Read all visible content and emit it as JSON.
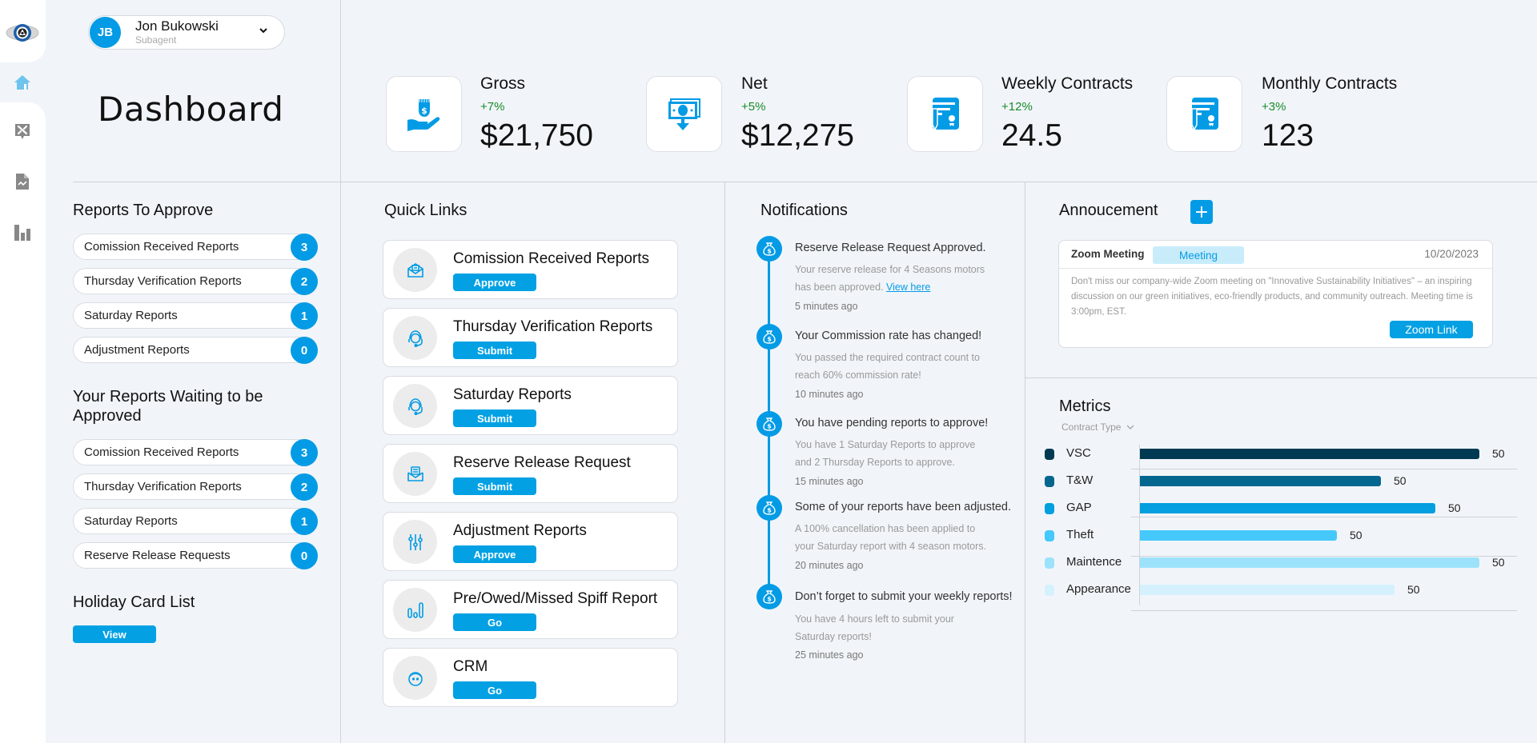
{
  "user": {
    "initials": "JB",
    "name": "Jon Bukowski",
    "role": "Subagent"
  },
  "page_title": "Dashboard",
  "sidebar": {
    "items": [
      {
        "name": "home",
        "icon": "home-icon",
        "active": true
      },
      {
        "name": "tools",
        "icon": "tools-icon",
        "active": false
      },
      {
        "name": "reports",
        "icon": "file-chart-icon",
        "active": false
      },
      {
        "name": "analytics",
        "icon": "bar-chart-icon",
        "active": false
      }
    ]
  },
  "kpis": [
    {
      "label": "Gross",
      "delta": "+7%",
      "value": "$21,750",
      "icon": "hand-money-icon"
    },
    {
      "label": "Net",
      "delta": "+5%",
      "value": "$12,275",
      "icon": "cash-down-icon"
    },
    {
      "label": "Weekly Contracts",
      "delta": "+12%",
      "value": "24.5",
      "icon": "contract-icon"
    },
    {
      "label": "Monthly Contracts",
      "delta": "+3%",
      "value": "123",
      "icon": "contract-icon"
    }
  ],
  "reports_to_approve": {
    "title": "Reports To Approve",
    "items": [
      {
        "label": "Comission Received Reports",
        "count": "3"
      },
      {
        "label": "Thursday Verification Reports",
        "count": "2"
      },
      {
        "label": "Saturday Reports",
        "count": "1"
      },
      {
        "label": "Adjustment Reports",
        "count": "0"
      }
    ]
  },
  "reports_waiting": {
    "title_line1": "Your Reports Waiting to be",
    "title_line2": "Approved",
    "items": [
      {
        "label": "Comission Received Reports",
        "count": "3"
      },
      {
        "label": "Thursday Verification Reports",
        "count": "2"
      },
      {
        "label": "Saturday Reports",
        "count": "1"
      },
      {
        "label": "Reserve Release Requests",
        "count": "0"
      }
    ]
  },
  "holiday": {
    "title": "Holiday Card List",
    "button": "View"
  },
  "quick_links": {
    "title": "Quick Links",
    "items": [
      {
        "title": "Comission Received Reports",
        "button": "Approve",
        "icon": "envelope-open-icon"
      },
      {
        "title": "Thursday Verification Reports",
        "button": "Submit",
        "icon": "headset-agent-icon"
      },
      {
        "title": "Saturday Reports",
        "button": "Submit",
        "icon": "headset-agent-icon"
      },
      {
        "title": "Reserve Release Request",
        "button": "Submit",
        "icon": "mail-document-icon"
      },
      {
        "title": "Adjustment Reports",
        "button": "Approve",
        "icon": "sliders-icon"
      },
      {
        "title": "Pre/Owed/Missed Spiff Report",
        "button": "Go",
        "icon": "bar-chart-icon"
      },
      {
        "title": "CRM",
        "button": "Go",
        "icon": "user-face-icon"
      }
    ]
  },
  "notifications": {
    "title": "Notifications",
    "items": [
      {
        "title": "Reserve Release Request Approved.",
        "body_line1": "Your reserve release for 4 Seasons motors",
        "body_line2": "has been approved.",
        "link": "View here",
        "time": "5 minutes ago"
      },
      {
        "title": "Your Commission rate has changed!",
        "body_line1": "You passed the required contract count to",
        "body_line2": "reach 60% commission rate!",
        "time": "10 minutes ago"
      },
      {
        "title": "You have pending reports to approve!",
        "body_line1": "You have 1 Saturday Reports to approve",
        "body_line2": "and 2 Thursday Reports to approve.",
        "time": "15 minutes ago"
      },
      {
        "title": "Some of your reports have been adjusted.",
        "body_line1": "A 100% cancellation has been applied to",
        "body_line2": "your Saturday report with 4 season motors.",
        "time": "20 minutes ago"
      },
      {
        "title": "Don’t forget to submit your weekly reports!",
        "body_line1": "You have 4 hours left to submit your",
        "body_line2": "Saturday reports!",
        "time": "25 minutes ago"
      }
    ]
  },
  "announcement": {
    "title": "Annoucement",
    "add_label": "+",
    "card": {
      "title": "Zoom Meeting",
      "tag": "Meeting",
      "date": "10/20/2023",
      "body": "Don't miss our company-wide Zoom meeting on \"Innovative Sustainability Initiatives\" – an inspiring discussion on our green initiatives, eco-friendly products, and community outreach. Meeting time is 3:00pm, EST.",
      "button": "Zoom Link"
    }
  },
  "metrics": {
    "title": "Metrics",
    "filter": "Contract Type"
  },
  "colors": {
    "accent": "#039be5",
    "positive": "#1a8a2a",
    "background": "#f1f5f9"
  },
  "chart_data": {
    "type": "bar",
    "orientation": "horizontal",
    "title": "Metrics",
    "categories": [
      "VSC",
      "T&W",
      "GAP",
      "Theft",
      "Maintence",
      "Appearance"
    ],
    "values": [
      50,
      50,
      50,
      50,
      50,
      50
    ],
    "bar_fill_fraction": [
      1.0,
      0.71,
      0.87,
      0.58,
      1.0,
      0.75
    ],
    "colors": [
      "#003a52",
      "#02668f",
      "#039fdf",
      "#45c8fb",
      "#9de2fb",
      "#d4f1fd"
    ],
    "legend": "left",
    "grid": true
  }
}
